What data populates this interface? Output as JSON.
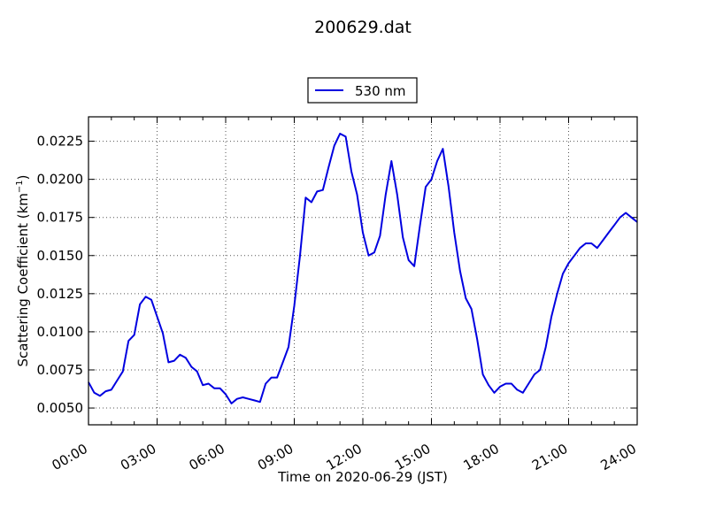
{
  "chart_data": {
    "type": "line",
    "title": "200629.dat",
    "xlabel": "Time on 2020-06-29 (JST)",
    "ylabel": "Scattering Coefficient (km",
    "ylabel_sup": "−1",
    "ylabel_close": ")",
    "xlim": [
      "00:00",
      "24:00"
    ],
    "ylim": [
      0.0039,
      0.0241
    ],
    "x_ticks": [
      "00:00",
      "03:00",
      "06:00",
      "09:00",
      "12:00",
      "15:00",
      "18:00",
      "21:00",
      "24:00"
    ],
    "y_ticks": [
      "0.0050",
      "0.0075",
      "0.0100",
      "0.0125",
      "0.0150",
      "0.0175",
      "0.0200",
      "0.0225"
    ],
    "grid": true,
    "legend_position": "top-center-outside",
    "series": [
      {
        "name": "530 nm",
        "color": "#0000e0",
        "x": [
          "00:00",
          "00:15",
          "00:30",
          "00:45",
          "01:00",
          "01:15",
          "01:30",
          "01:45",
          "02:00",
          "02:15",
          "02:30",
          "02:45",
          "03:00",
          "03:15",
          "03:30",
          "03:45",
          "04:00",
          "04:15",
          "04:30",
          "04:45",
          "05:00",
          "05:15",
          "05:30",
          "05:45",
          "06:00",
          "06:15",
          "06:30",
          "06:45",
          "07:00",
          "07:15",
          "07:30",
          "07:45",
          "08:00",
          "08:15",
          "08:30",
          "08:45",
          "09:00",
          "09:15",
          "09:30",
          "09:45",
          "10:00",
          "10:15",
          "10:30",
          "10:45",
          "11:00",
          "11:15",
          "11:30",
          "11:45",
          "12:00",
          "12:15",
          "12:30",
          "12:45",
          "13:00",
          "13:15",
          "13:30",
          "13:45",
          "14:00",
          "14:15",
          "14:30",
          "14:45",
          "15:00",
          "15:15",
          "15:30",
          "15:45",
          "16:00",
          "16:15",
          "16:30",
          "16:45",
          "17:00",
          "17:15",
          "17:30",
          "17:45",
          "18:00",
          "18:15",
          "18:30",
          "18:45",
          "19:00",
          "19:15",
          "19:30",
          "19:45",
          "20:00",
          "20:15",
          "20:30",
          "20:45",
          "21:00",
          "21:15",
          "21:30",
          "21:45",
          "22:00",
          "22:15",
          "22:30",
          "22:45",
          "23:00",
          "23:15",
          "23:30",
          "23:45",
          "24:00"
        ],
        "values": [
          0.0067,
          0.006,
          0.0058,
          0.0061,
          0.0062,
          0.0068,
          0.0074,
          0.0094,
          0.0098,
          0.0118,
          0.0123,
          0.0121,
          0.011,
          0.0099,
          0.008,
          0.0081,
          0.0085,
          0.0083,
          0.0077,
          0.0074,
          0.0065,
          0.0066,
          0.0063,
          0.0063,
          0.0059,
          0.0053,
          0.0056,
          0.0057,
          0.0056,
          0.0055,
          0.0054,
          0.0066,
          0.007,
          0.007,
          0.008,
          0.009,
          0.0117,
          0.015,
          0.0188,
          0.0185,
          0.0192,
          0.0193,
          0.0208,
          0.0222,
          0.023,
          0.0228,
          0.0205,
          0.019,
          0.0165,
          0.015,
          0.0152,
          0.0163,
          0.019,
          0.0212,
          0.019,
          0.0162,
          0.0147,
          0.0143,
          0.017,
          0.0195,
          0.02,
          0.0212,
          0.022,
          0.0195,
          0.0165,
          0.014,
          0.0122,
          0.0115,
          0.0095,
          0.0072,
          0.0065,
          0.006,
          0.0064,
          0.0066,
          0.0066,
          0.0062,
          0.006,
          0.0066,
          0.0072,
          0.0075,
          0.009,
          0.011,
          0.0125,
          0.0138,
          0.0145,
          0.015,
          0.0155,
          0.0158,
          0.0158,
          0.0155,
          0.016,
          0.0165,
          0.017,
          0.0175,
          0.0178,
          0.0175,
          0.0172
        ]
      }
    ]
  }
}
